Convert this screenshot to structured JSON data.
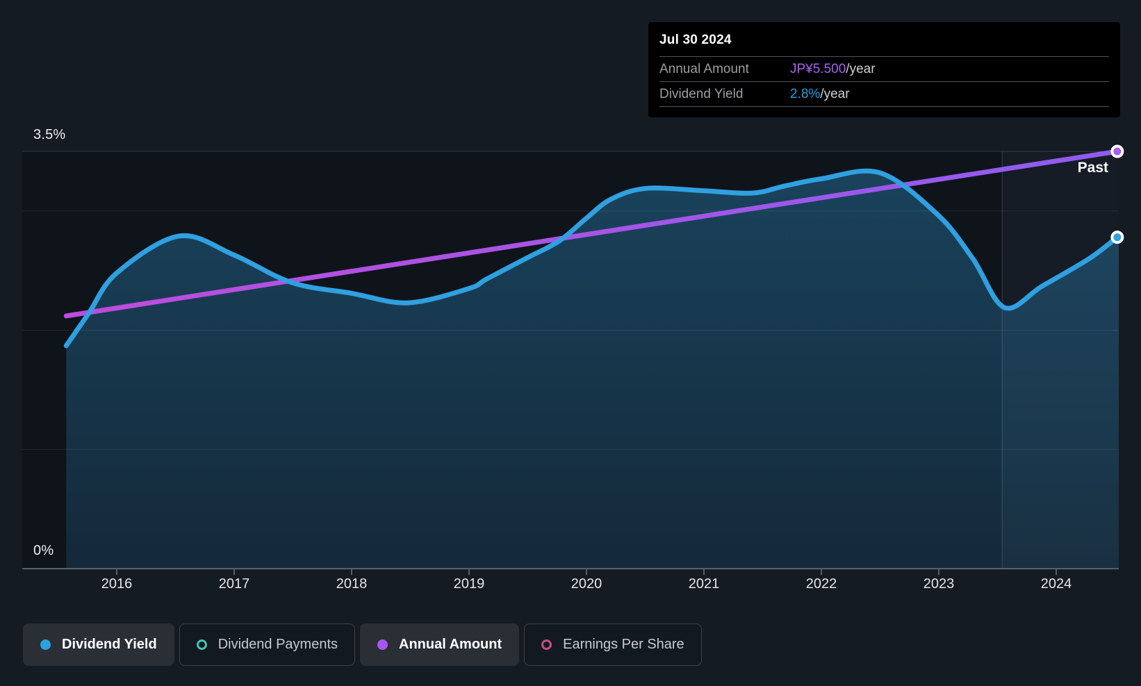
{
  "tooltip": {
    "date": "Jul 30 2024",
    "rows": [
      {
        "label": "Annual Amount",
        "value": "JP¥5.500",
        "suffix": "/year",
        "value_color": "#a862f2"
      },
      {
        "label": "Dividend Yield",
        "value": "2.8%",
        "suffix": "/year",
        "value_color": "#2b9fe3"
      }
    ]
  },
  "chart": {
    "past_label": "Past",
    "y_axis": {
      "top_label": "3.5%",
      "bottom_label": "0%"
    },
    "x_axis": {
      "ticks": [
        2016,
        2017,
        2018,
        2019,
        2020,
        2021,
        2022,
        2023,
        2024
      ]
    },
    "divider_year": 2023.54
  },
  "chart_data": {
    "type": "line",
    "x_unit": "decimal_year",
    "xlim": [
      2015.2,
      2024.55
    ],
    "ylim": [
      0,
      3.5
    ],
    "y_gridlines": [
      1,
      2,
      3,
      3.5
    ],
    "grid_on": true,
    "legend_position": "bottom-left",
    "series": [
      {
        "name": "Dividend Yield",
        "color": "#2fa0e0",
        "unit": "percent",
        "area_fill": true,
        "points": [
          [
            2015.57,
            1.87
          ],
          [
            2015.76,
            2.14
          ],
          [
            2016.0,
            2.48
          ],
          [
            2016.53,
            2.79
          ],
          [
            2017.0,
            2.63
          ],
          [
            2017.49,
            2.4
          ],
          [
            2018.0,
            2.31
          ],
          [
            2018.48,
            2.23
          ],
          [
            2019.0,
            2.35
          ],
          [
            2019.15,
            2.43
          ],
          [
            2019.5,
            2.61
          ],
          [
            2019.77,
            2.75
          ],
          [
            2020.0,
            2.94
          ],
          [
            2020.21,
            3.1
          ],
          [
            2020.51,
            3.19
          ],
          [
            2021.0,
            3.17
          ],
          [
            2021.41,
            3.15
          ],
          [
            2021.69,
            3.21
          ],
          [
            2022.0,
            3.27
          ],
          [
            2022.5,
            3.32
          ],
          [
            2022.99,
            2.97
          ],
          [
            2023.29,
            2.6
          ],
          [
            2023.56,
            2.19
          ],
          [
            2023.88,
            2.37
          ],
          [
            2024.28,
            2.6
          ],
          [
            2024.52,
            2.78
          ]
        ],
        "end_value_label": "2.8%/year"
      },
      {
        "name": "Annual Amount",
        "color_start": "#bf4cdb",
        "color_end": "#8f5cf0",
        "unit": "JP¥ per year (own hidden scale)",
        "points_axis_pct": [
          [
            2015.57,
            2.12
          ],
          [
            2024.52,
            3.5
          ]
        ],
        "end_value_label": "JP¥5.500/year"
      }
    ],
    "inactive_series": [
      "Dividend Payments",
      "Earnings Per Share"
    ]
  },
  "legend": {
    "items": [
      {
        "label": "Dividend Yield",
        "color": "#2e9fe0",
        "active": true,
        "marker": "filled"
      },
      {
        "label": "Dividend Payments",
        "color": "#40c4b1",
        "active": false,
        "marker": "outline"
      },
      {
        "label": "Annual Amount",
        "color": "#a757f0",
        "active": true,
        "marker": "filled"
      },
      {
        "label": "Earnings Per Share",
        "color": "#c74b8c",
        "active": false,
        "marker": "outline"
      }
    ]
  }
}
